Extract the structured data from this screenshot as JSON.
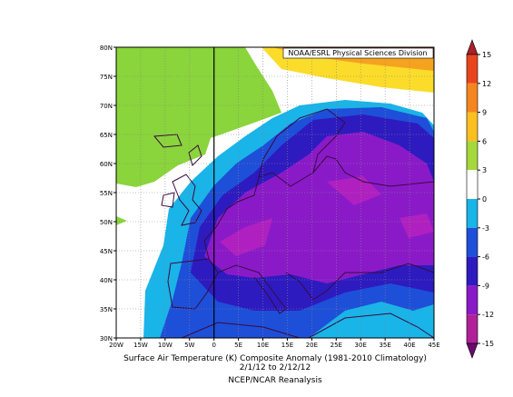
{
  "map": {
    "credit": "NOAA/ESRL Physical Sciences Division",
    "lat_labels": [
      "80N",
      "75N",
      "70N",
      "65N",
      "60N",
      "55N",
      "50N",
      "45N",
      "40N",
      "35N",
      "30N"
    ],
    "lon_labels": [
      "20W",
      "15W",
      "10W",
      "5W",
      "0",
      "5E",
      "10E",
      "15E",
      "20E",
      "25E",
      "30E",
      "35E",
      "40E",
      "45E"
    ],
    "caption": [
      "Surface Air Temperature (K) Composite Anomaly (1981-2010 Climatology)",
      "2/1/12  to 2/12/12",
      "NCEP/NCAR Reanalysis"
    ],
    "colorbar": {
      "ticks": [
        15,
        12,
        9,
        6,
        3,
        0,
        -3,
        -6,
        -9,
        -12,
        -15
      ],
      "colors": [
        "#a8202a",
        "#e8451e",
        "#f5851f",
        "#fbbf1f",
        "#a6d73c",
        "#ffffff",
        "#19b4e8",
        "#1e4fd8",
        "#2d1bc0",
        "#8a1ac8",
        "#b02098",
        "#6a0a70"
      ]
    }
  }
}
